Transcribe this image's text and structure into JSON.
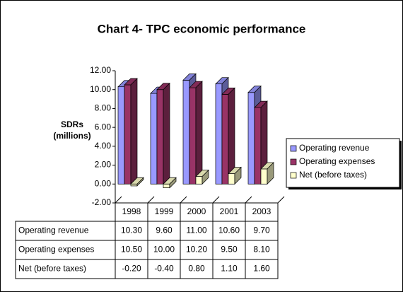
{
  "chart_data": {
    "type": "bar3d",
    "title": "Chart 4- TPC economic performance",
    "y_label": "SDRs (millions)",
    "categories": [
      "1998",
      "1999",
      "2000",
      "2001",
      "2003"
    ],
    "series": [
      {
        "name": "Operating revenue",
        "color": "#9999ff",
        "values": [
          10.3,
          9.6,
          11.0,
          10.6,
          9.7
        ],
        "value_labels": [
          "10.30",
          "9.60",
          "11.00",
          "10.60",
          "9.70"
        ]
      },
      {
        "name": "Operating expenses",
        "color": "#993366",
        "values": [
          10.5,
          10.0,
          10.2,
          9.5,
          8.1
        ],
        "value_labels": [
          "10.50",
          "10.00",
          "10.20",
          "9.50",
          "8.10"
        ]
      },
      {
        "name": "Net (before taxes)",
        "color": "#ffffcc",
        "values": [
          -0.2,
          -0.4,
          0.8,
          1.1,
          1.6
        ],
        "value_labels": [
          "-0.20",
          "-0.40",
          "0.80",
          "1.10",
          "1.60"
        ]
      }
    ],
    "ylim": [
      -2,
      12
    ],
    "yticks": [
      {
        "value": -2,
        "label": "-2.00"
      },
      {
        "value": 0,
        "label": "0.00"
      },
      {
        "value": 2,
        "label": "2.00"
      },
      {
        "value": 4,
        "label": "4.00"
      },
      {
        "value": 6,
        "label": "6.00"
      },
      {
        "value": 8,
        "label": "8.00"
      },
      {
        "value": 10,
        "label": "10.00"
      },
      {
        "value": 12,
        "label": "12.00"
      }
    ],
    "legend": "right",
    "data_table": true
  }
}
